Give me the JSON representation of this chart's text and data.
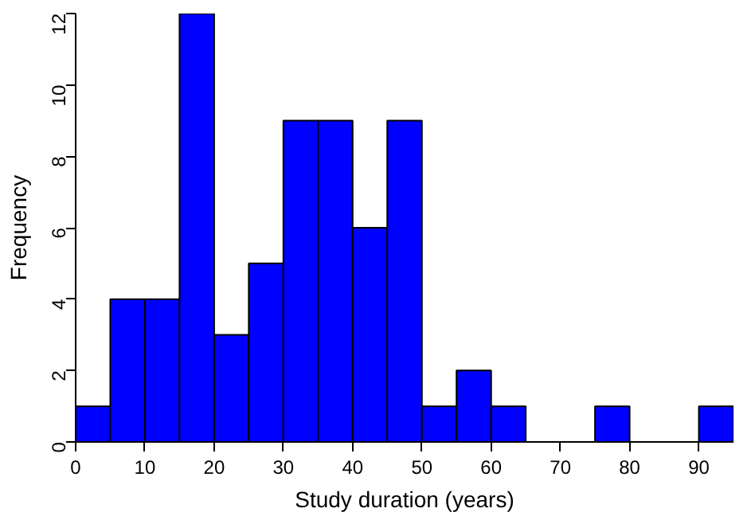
{
  "chart_data": {
    "type": "histogram",
    "xlabel": "Study duration (years)",
    "ylabel": "Frequency",
    "bins": [
      0,
      5,
      10,
      15,
      20,
      25,
      30,
      35,
      40,
      45,
      50,
      55,
      60,
      65,
      70,
      75,
      80,
      85,
      90,
      95
    ],
    "values": [
      1,
      4,
      4,
      12,
      3,
      5,
      9,
      9,
      6,
      9,
      1,
      2,
      1,
      0,
      0,
      1,
      0,
      0,
      1
    ],
    "color": "#0000ff",
    "xlim": [
      0,
      95
    ],
    "ylim": [
      0,
      12
    ],
    "xticks": [
      0,
      10,
      20,
      30,
      40,
      50,
      60,
      70,
      80,
      90
    ],
    "yticks": [
      0,
      2,
      4,
      6,
      8,
      10,
      12
    ],
    "grid": false
  }
}
